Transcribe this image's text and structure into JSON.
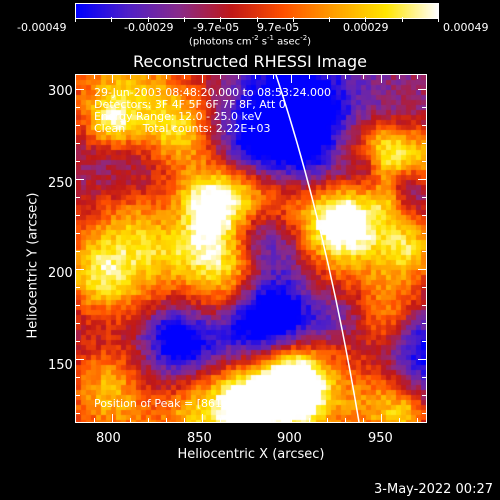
{
  "colorbar": {
    "tick_labels": [
      "-0.00049",
      "-0.00029",
      "-9.7e-05",
      "9.7e-05",
      "0.00029",
      "0.00049"
    ],
    "unit_label": "(photons cm",
    "unit_exp1": "-2",
    "unit_mid": " s",
    "unit_exp2": "-1",
    "unit_end": " asec",
    "unit_exp3": "-2",
    "unit_close": ")",
    "colors": [
      "#0000ff",
      "#5020c8",
      "#8a2b8a",
      "#c01818",
      "#ff5000",
      "#ffa000",
      "#ffe600",
      "#ffffff"
    ]
  },
  "title": "Reconstructed RHESSI Image",
  "annotations": {
    "line1": "29-Jun-2003 08:48:20.000 to 08:53:24.000",
    "line2": "Detectors: 3F 4F 5F 6F 7F 8F, Att 0",
    "line3": "Energy Range: 12.0 - 25.0 keV",
    "line4": "Clean     Total counts: 2.22E+03",
    "peak": "Position of Peak = [861,190]"
  },
  "axes": {
    "xlabel": "Heliocentric X (arcsec)",
    "ylabel": "Heliocentric Y (arcsec)",
    "xticks": [
      "800",
      "850",
      "900",
      "950"
    ],
    "yticks": [
      "150",
      "200",
      "250",
      "300"
    ],
    "xlim": [
      780,
      975
    ],
    "ylim": [
      115,
      308
    ]
  },
  "timestamp": "3-May-2022 00:27"
}
